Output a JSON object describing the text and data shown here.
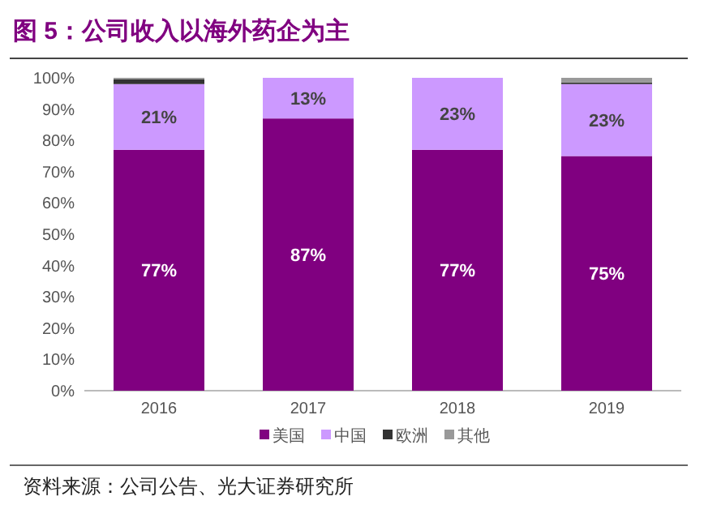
{
  "chart_data": {
    "type": "bar",
    "stacked": true,
    "title": "图 5：公司收入以海外药企为主",
    "categories": [
      "2016",
      "2017",
      "2018",
      "2019"
    ],
    "series": [
      {
        "name": "美国",
        "color": "#800080",
        "values": [
          77,
          87,
          77,
          75
        ],
        "value_labels": [
          "77%",
          "87%",
          "77%",
          "75%"
        ]
      },
      {
        "name": "中国",
        "color": "#cc99ff",
        "values": [
          21,
          13,
          23,
          23
        ],
        "value_labels": [
          "21%",
          "13%",
          "23%",
          "23%"
        ]
      },
      {
        "name": "欧洲",
        "color": "#333333",
        "values": [
          1.5,
          0,
          0,
          0.5
        ]
      },
      {
        "name": "其他",
        "color": "#999999",
        "values": [
          0.5,
          0,
          0,
          1.5
        ]
      }
    ],
    "ylim": [
      0,
      100
    ],
    "yticks": [
      {
        "value": 0,
        "label": "0%"
      },
      {
        "value": 10,
        "label": "10%"
      },
      {
        "value": 20,
        "label": "20%"
      },
      {
        "value": 30,
        "label": "30%"
      },
      {
        "value": 40,
        "label": "40%"
      },
      {
        "value": 50,
        "label": "50%"
      },
      {
        "value": 60,
        "label": "60%"
      },
      {
        "value": 70,
        "label": "70%"
      },
      {
        "value": 80,
        "label": "80%"
      },
      {
        "value": 90,
        "label": "90%"
      },
      {
        "value": 100,
        "label": "100%"
      }
    ],
    "legend": "bottom",
    "annotations": [
      "资料来源：公司公告、光大证券研究所"
    ]
  }
}
